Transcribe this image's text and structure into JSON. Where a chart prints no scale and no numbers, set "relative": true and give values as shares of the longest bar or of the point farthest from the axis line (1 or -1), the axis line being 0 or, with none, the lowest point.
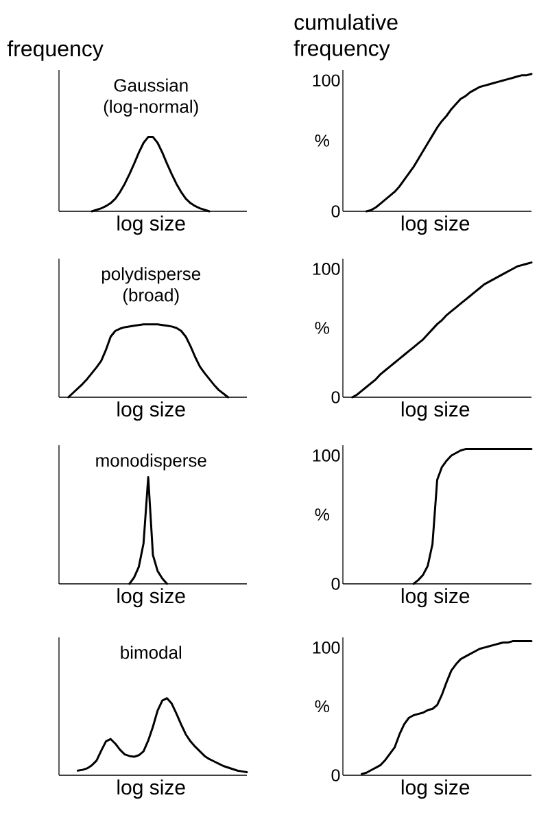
{
  "chart_data": [
    {
      "type": "line",
      "title": "Gaussian (log-normal)",
      "xlabel": "log size",
      "ylabel": "frequency",
      "relative": true,
      "tick_labels": false,
      "color": "#000000",
      "categories": [
        null,
        null,
        null,
        null,
        null,
        null,
        null,
        null,
        null,
        null,
        null,
        null,
        null,
        null,
        null,
        null,
        null,
        null,
        null,
        null,
        null,
        null,
        null,
        null,
        null,
        null,
        null,
        null,
        null,
        null,
        null,
        null,
        null,
        null,
        null,
        null,
        null,
        null,
        null,
        null,
        null
      ],
      "values": [
        null,
        null,
        null,
        null,
        null,
        null,
        null,
        0,
        0.02,
        0.04,
        0.07,
        0.11,
        0.17,
        0.26,
        0.37,
        0.5,
        0.64,
        0.79,
        0.92,
        1,
        1,
        0.92,
        0.79,
        0.64,
        0.5,
        0.37,
        0.26,
        0.17,
        0.11,
        0.07,
        0.04,
        0.02,
        0,
        null,
        null,
        null,
        null,
        null,
        null,
        null,
        null
      ]
    },
    {
      "type": "line",
      "title": "cumulative frequency",
      "xlabel": "log size",
      "ylabel": "%",
      "ylim": [
        0,
        108
      ],
      "yticks": [
        0,
        100
      ],
      "tick_labels": "y",
      "color": "#000000",
      "categories": [
        null,
        null,
        null,
        null,
        null,
        null,
        null,
        null,
        null,
        null,
        null,
        null,
        null,
        null,
        null,
        null,
        null,
        null,
        null,
        null,
        null,
        null,
        null,
        null,
        null,
        null,
        null,
        null,
        null,
        null,
        null,
        null,
        null,
        null,
        null,
        null,
        null,
        null,
        null,
        null,
        null
      ],
      "values": [
        null,
        null,
        null,
        null,
        null,
        0,
        1,
        3,
        6,
        9,
        12,
        15,
        19,
        24,
        29,
        34,
        40,
        46,
        52,
        58,
        64,
        69,
        73,
        78,
        82,
        86,
        88,
        91,
        93,
        95,
        96,
        97,
        98,
        99,
        100,
        101,
        102,
        103,
        104,
        104,
        105
      ]
    },
    {
      "type": "line",
      "title": "polydisperse (broad)",
      "xlabel": "log size",
      "relative": true,
      "tick_labels": false,
      "color": "#000000",
      "categories": [
        null,
        null,
        null,
        null,
        null,
        null,
        null,
        null,
        null,
        null,
        null,
        null,
        null,
        null,
        null,
        null,
        null,
        null,
        null,
        null,
        null,
        null,
        null,
        null,
        null,
        null,
        null,
        null,
        null,
        null,
        null,
        null,
        null,
        null,
        null,
        null,
        null,
        null,
        null,
        null,
        null
      ],
      "values": [
        null,
        null,
        0,
        0.06,
        0.12,
        0.18,
        0.25,
        0.33,
        0.41,
        0.5,
        0.65,
        0.83,
        0.91,
        0.94,
        0.96,
        0.97,
        0.98,
        0.99,
        1,
        1,
        1,
        1,
        0.99,
        0.98,
        0.97,
        0.95,
        0.91,
        0.83,
        0.7,
        0.55,
        0.42,
        0.33,
        0.25,
        0.17,
        0.1,
        0.05,
        0,
        null,
        null,
        null,
        null
      ]
    },
    {
      "type": "line",
      "xlabel": "log size",
      "ylabel": "%",
      "ylim": [
        0,
        108
      ],
      "yticks": [
        0,
        100
      ],
      "tick_labels": "y",
      "color": "#000000",
      "categories": [
        null,
        null,
        null,
        null,
        null,
        null,
        null,
        null,
        null,
        null,
        null,
        null,
        null,
        null,
        null,
        null,
        null,
        null,
        null,
        null,
        null,
        null,
        null,
        null,
        null,
        null,
        null,
        null,
        null,
        null,
        null,
        null,
        null,
        null,
        null,
        null,
        null,
        null,
        null,
        null,
        null
      ],
      "values": [
        null,
        null,
        0,
        2,
        5,
        8,
        11,
        14,
        18,
        21,
        24,
        27,
        30,
        33,
        36,
        39,
        42,
        45,
        49,
        53,
        57,
        60,
        64,
        67,
        70,
        73,
        76,
        79,
        82,
        85,
        88,
        90,
        92,
        94,
        96,
        98,
        100,
        102,
        103,
        104,
        105
      ]
    },
    {
      "type": "line",
      "title": "monodisperse",
      "xlabel": "log size",
      "relative": true,
      "tick_labels": false,
      "color": "#000000",
      "categories": [
        null,
        null,
        null,
        null,
        null,
        null,
        null,
        null,
        null,
        null,
        null,
        null,
        null,
        null,
        null,
        null,
        null,
        null,
        null,
        null,
        null,
        null,
        null,
        null,
        null,
        null,
        null,
        null,
        null,
        null,
        null,
        null,
        null,
        null,
        null,
        null,
        null,
        null,
        null,
        null,
        null
      ],
      "values": [
        null,
        null,
        null,
        null,
        null,
        null,
        null,
        null,
        null,
        null,
        null,
        null,
        null,
        null,
        null,
        0,
        0.06,
        0.16,
        0.38,
        1,
        0.27,
        0.12,
        0.05,
        0,
        null,
        null,
        null,
        null,
        null,
        null,
        null,
        null,
        null,
        null,
        null,
        null,
        null,
        null,
        null,
        null,
        null
      ]
    },
    {
      "type": "line",
      "xlabel": "log size",
      "ylabel": "%",
      "ylim": [
        0,
        108
      ],
      "yticks": [
        0,
        100
      ],
      "tick_labels": "y",
      "color": "#000000",
      "categories": [
        null,
        null,
        null,
        null,
        null,
        null,
        null,
        null,
        null,
        null,
        null,
        null,
        null,
        null,
        null,
        null,
        null,
        null,
        null,
        null,
        null,
        null,
        null,
        null,
        null,
        null,
        null,
        null,
        null,
        null,
        null,
        null,
        null,
        null,
        null,
        null,
        null,
        null,
        null,
        null,
        null
      ],
      "values": [
        null,
        null,
        null,
        null,
        null,
        null,
        null,
        null,
        null,
        null,
        null,
        null,
        null,
        null,
        null,
        0,
        3,
        7,
        14,
        31,
        81,
        91,
        96,
        100,
        102,
        104,
        105,
        105,
        105,
        105,
        105,
        105,
        105,
        105,
        105,
        105,
        105,
        105,
        105,
        105,
        105
      ]
    },
    {
      "type": "line",
      "title": "bimodal",
      "xlabel": "log size",
      "relative": true,
      "tick_labels": false,
      "color": "#000000",
      "categories": [
        null,
        null,
        null,
        null,
        null,
        null,
        null,
        null,
        null,
        null,
        null,
        null,
        null,
        null,
        null,
        null,
        null,
        null,
        null,
        null,
        null,
        null,
        null,
        null,
        null,
        null,
        null,
        null,
        null,
        null,
        null,
        null,
        null,
        null,
        null,
        null,
        null,
        null,
        null,
        null,
        null
      ],
      "values": [
        null,
        null,
        null,
        null,
        0.06,
        0.07,
        0.09,
        0.13,
        0.19,
        0.32,
        0.44,
        0.47,
        0.41,
        0.33,
        0.27,
        0.25,
        0.24,
        0.26,
        0.31,
        0.45,
        0.63,
        0.84,
        0.97,
        1,
        0.93,
        0.8,
        0.66,
        0.53,
        0.44,
        0.37,
        0.31,
        0.25,
        0.21,
        0.18,
        0.15,
        0.12,
        0.1,
        0.08,
        0.06,
        0.05,
        0.04
      ]
    },
    {
      "type": "line",
      "xlabel": "log size",
      "ylabel": "%",
      "ylim": [
        0,
        108
      ],
      "yticks": [
        0,
        100
      ],
      "tick_labels": "y",
      "color": "#000000",
      "categories": [
        null,
        null,
        null,
        null,
        null,
        null,
        null,
        null,
        null,
        null,
        null,
        null,
        null,
        null,
        null,
        null,
        null,
        null,
        null,
        null,
        null,
        null,
        null,
        null,
        null,
        null,
        null,
        null,
        null,
        null,
        null,
        null,
        null,
        null,
        null,
        null,
        null,
        null,
        null,
        null,
        null
      ],
      "values": [
        null,
        null,
        null,
        null,
        1,
        2,
        4,
        6,
        8,
        12,
        17,
        22,
        32,
        40,
        45,
        47,
        48,
        49,
        51,
        52,
        55,
        63,
        73,
        82,
        87,
        91,
        93,
        95,
        97,
        99,
        100,
        101,
        102,
        103,
        104,
        104,
        105,
        105,
        105,
        105,
        105
      ]
    }
  ]
}
